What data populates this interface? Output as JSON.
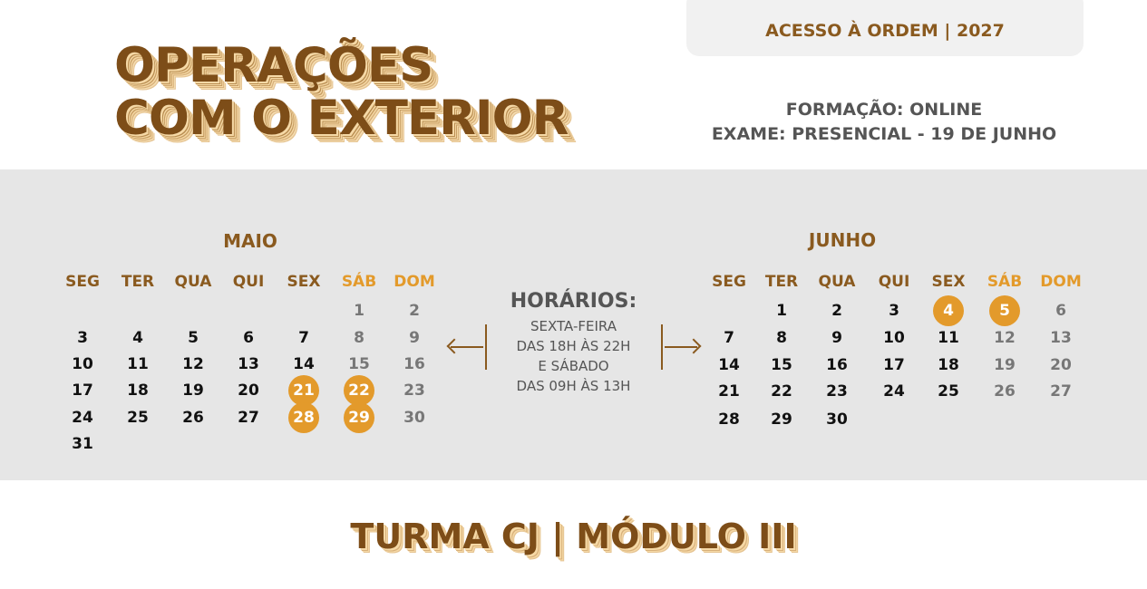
{
  "header": {
    "badge": "ACESSO À ORDEM | 2027",
    "title_line1": "OPERAÇÕES",
    "title_line2": "COM O EXTERIOR",
    "formacao": "FORMAÇÃO: ONLINE",
    "exame": "EXAME: PRESENCIAL - 19 DE JUNHO"
  },
  "weekdays": [
    "SEG",
    "TER",
    "QUA",
    "QUI",
    "SEX",
    "SÁB",
    "DOM"
  ],
  "calendars": [
    {
      "month": "MAIO",
      "weeks": [
        [
          null,
          null,
          null,
          null,
          null,
          1,
          2
        ],
        [
          3,
          4,
          5,
          6,
          7,
          8,
          9
        ],
        [
          10,
          11,
          12,
          13,
          14,
          15,
          16
        ],
        [
          17,
          18,
          19,
          20,
          21,
          22,
          23
        ],
        [
          24,
          25,
          26,
          27,
          28,
          29,
          30
        ],
        [
          31
        ]
      ],
      "highlighted": [
        21,
        22,
        28,
        29
      ]
    },
    {
      "month": "JUNHO",
      "weeks": [
        [
          null,
          1,
          2,
          3,
          4,
          5,
          6
        ],
        [
          7,
          8,
          9,
          10,
          11,
          12,
          13
        ],
        [
          14,
          15,
          16,
          17,
          18,
          19,
          20
        ],
        [
          21,
          22,
          23,
          24,
          25,
          26,
          27
        ],
        [
          28,
          29,
          30
        ]
      ],
      "highlighted": [
        4,
        5
      ]
    }
  ],
  "schedule": {
    "title": "HORÁRIOS:",
    "text": "SEXTA-FEIRA\nDAS 18H ÀS 22H\nE SÁBADO\nDAS 09H ÀS 13H"
  },
  "footer": {
    "title": "TURMA CJ | MÓDULO III"
  },
  "colors": {
    "brown": "#7d4d18",
    "orange": "#e39a2b",
    "band": "#e6e6e6"
  }
}
